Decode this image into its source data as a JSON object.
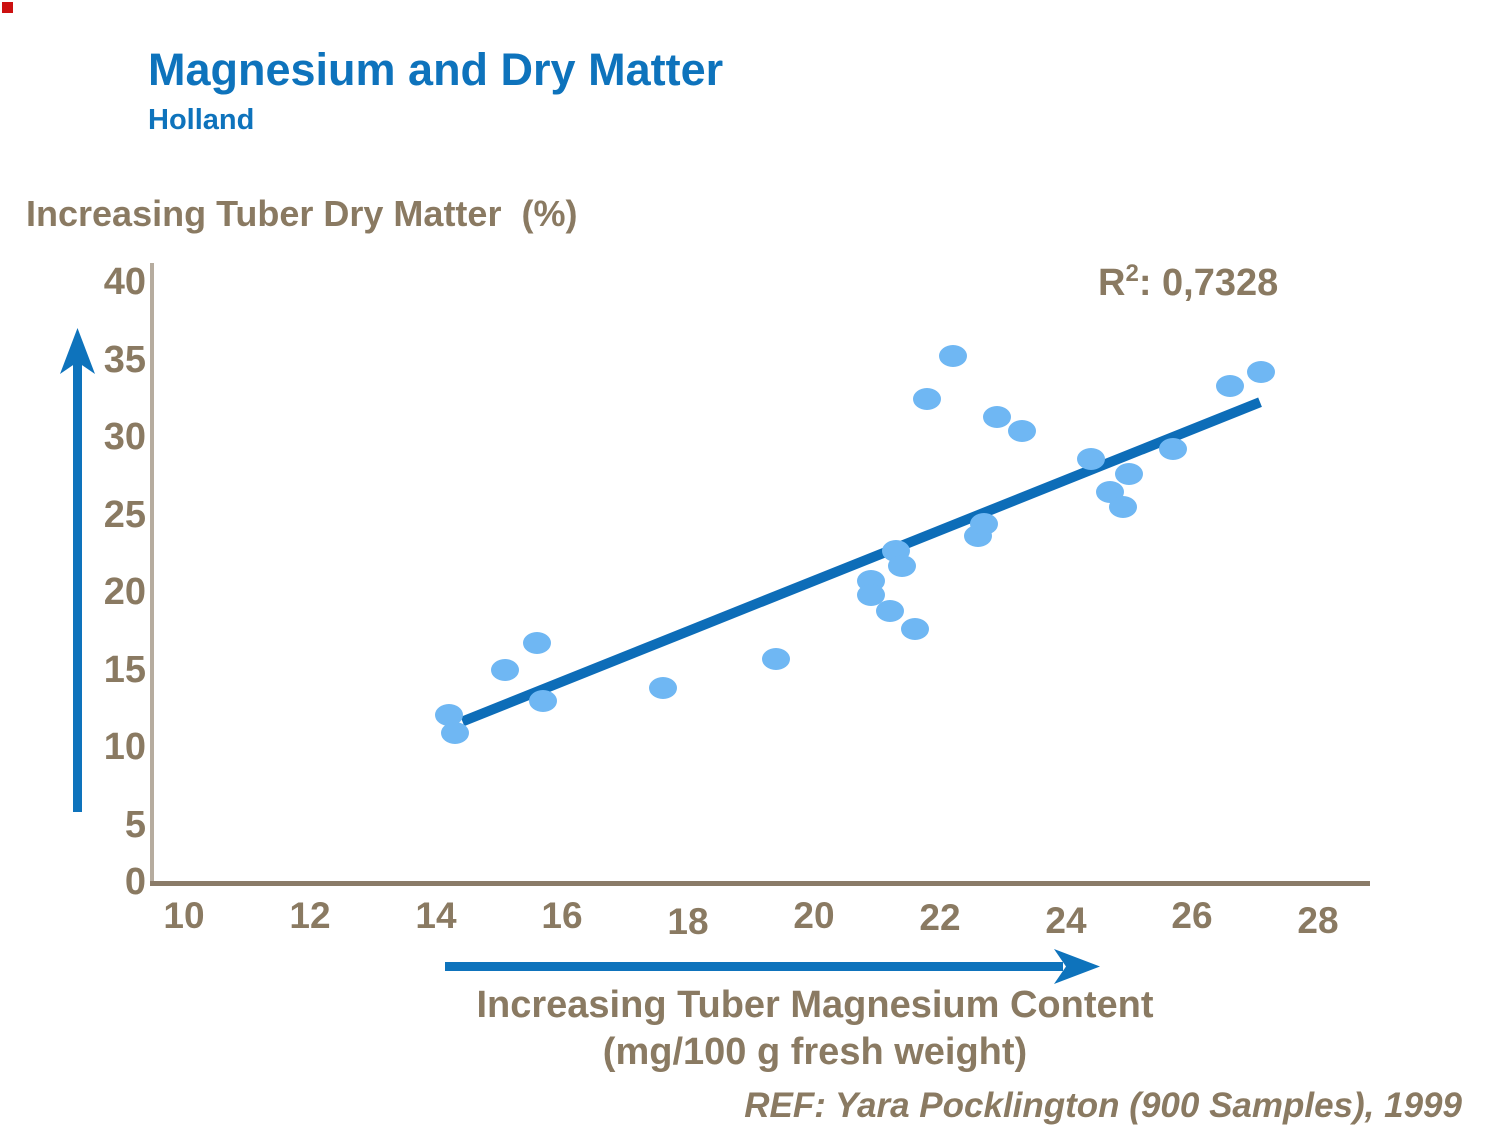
{
  "slide": {
    "title": "Magnesium and Dry Matter",
    "subtitle": "Holland",
    "r_label": "R",
    "r_sup": "2",
    "r_rest": ": 0,7328",
    "reference": "REF: Yara Pocklington (900 Samples), 1999"
  },
  "colors": {
    "brand_blue": "#0e73bc",
    "trend_blue": "#0d6db8",
    "dot_blue": "#6fb7f3",
    "text_brown": "#8a7a62",
    "axis_vertical": "#b6ac9f",
    "axis_horizontal": "#8a7b68",
    "corner_red": "#cc1111"
  },
  "chart_data": {
    "type": "scatter",
    "title": "Magnesium and Dry Matter (Holland)",
    "xlabel": "Increasing Tuber Magnesium Content",
    "xlabel_units": "(mg/100 g fresh weight)",
    "ylabel": "Increasing Tuber Dry Matter  (%)",
    "xlim": [
      10,
      28
    ],
    "ylim": [
      0,
      40
    ],
    "x_ticks": [
      10,
      12,
      14,
      16,
      18,
      20,
      22,
      24,
      26,
      28
    ],
    "y_ticks": [
      0,
      5,
      10,
      15,
      20,
      25,
      30,
      35,
      40
    ],
    "grid": false,
    "legend": "none",
    "r_squared": "0,7328",
    "points": [
      [
        14.2,
        11.2
      ],
      [
        14.3,
        10.0
      ],
      [
        15.1,
        14.2
      ],
      [
        15.6,
        16.0
      ],
      [
        15.7,
        12.1
      ],
      [
        17.6,
        13.0
      ],
      [
        19.4,
        14.9
      ],
      [
        20.9,
        20.1
      ],
      [
        20.9,
        19.2
      ],
      [
        21.2,
        18.1
      ],
      [
        21.3,
        22.1
      ],
      [
        21.4,
        21.1
      ],
      [
        21.6,
        16.9
      ],
      [
        21.8,
        32.2
      ],
      [
        22.2,
        35.1
      ],
      [
        22.6,
        23.1
      ],
      [
        22.7,
        23.9
      ],
      [
        22.9,
        31.0
      ],
      [
        23.3,
        30.1
      ],
      [
        24.4,
        28.2
      ],
      [
        24.7,
        26.0
      ],
      [
        24.9,
        25.0
      ],
      [
        25.0,
        27.2
      ],
      [
        25.7,
        28.9
      ],
      [
        26.6,
        33.1
      ],
      [
        27.1,
        34.0
      ]
    ],
    "trendline": {
      "x1": 14.42,
      "y1": 10.75,
      "x2": 27.08,
      "y2": 32.0
    }
  }
}
